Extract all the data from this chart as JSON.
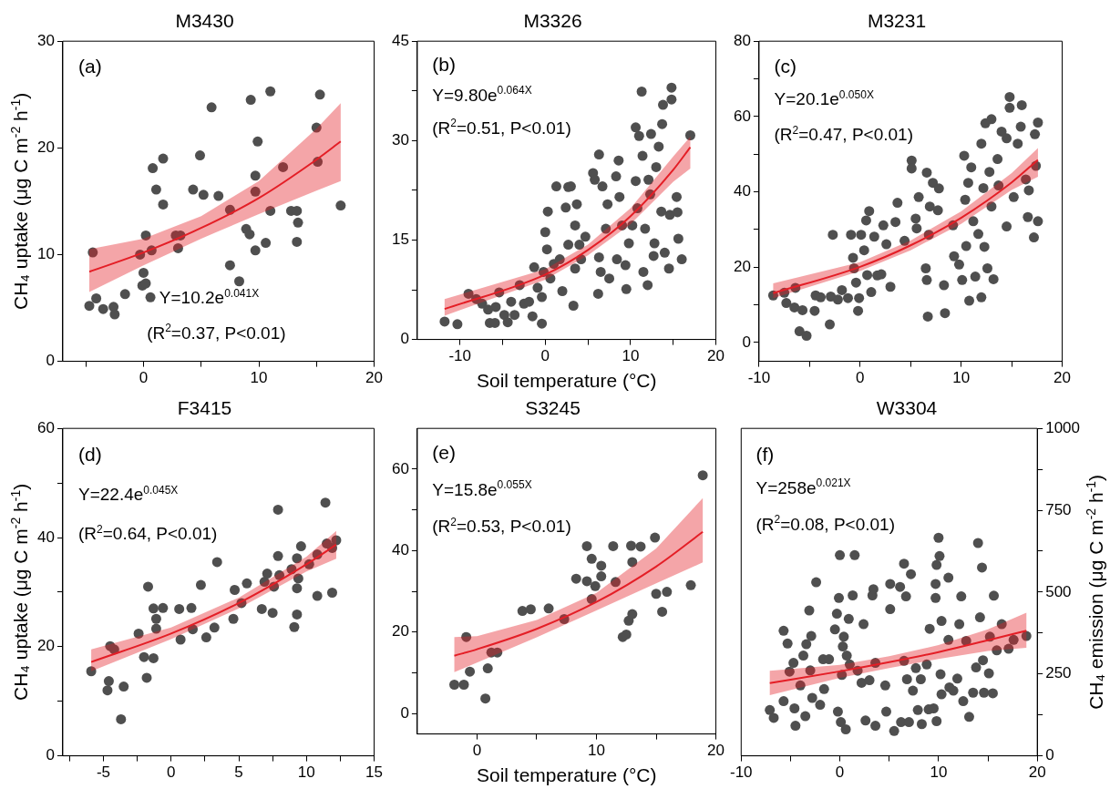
{
  "chart_data": [
    {
      "type": "scatter",
      "title": "M3430",
      "ylabel": "CH₄ uptake (μg C m$^{-2}$ h$^{-1}$)",
      "annotations": [
        "(a)",
        "Y=10.2e$^{0.041X}$",
        "(R$^{2}$=0.37, P<0.01)"
      ],
      "xlim": [
        -7,
        20
      ],
      "xticks": [
        {
          "value": -5,
          "label": null
        },
        0,
        {
          "value": 5,
          "label": null
        },
        10,
        {
          "value": 15,
          "label": null
        },
        20
      ],
      "ylim": [
        0,
        30
      ],
      "yticks": [
        0,
        10,
        20,
        30
      ],
      "series": [
        {
          "color": "#4f4f4f",
          "marker": "circle",
          "x": [
            -4.4,
            -4.7,
            -4.1,
            -3.5,
            -2.6,
            -2.5,
            -1.6,
            -0.3,
            0,
            -0.1,
            0.2,
            0.6,
            0.2,
            0.7,
            0.8,
            1.1,
            1.7,
            1.7,
            2.8,
            3.2,
            3.0,
            4.3,
            4.9,
            5.2,
            5.9,
            6.5,
            7.5,
            7.5,
            8.3,
            8.9,
            9.2,
            9.3,
            9.7,
            9.7,
            9.7,
            9.9,
            10.6,
            11.0,
            11.0,
            12.1,
            12.8,
            13.3,
            13.4,
            13.3,
            15.0,
            15.1,
            15.3,
            17.1
          ],
          "values": [
            10.2,
            5.2,
            5.9,
            4.9,
            5.1,
            4.4,
            6.3,
            10.0,
            8.3,
            7.1,
            7.3,
            6.0,
            11.8,
            10.4,
            18.1,
            16.1,
            19.0,
            14.7,
            11.8,
            11.8,
            10.6,
            16.1,
            19.3,
            15.6,
            23.8,
            15.5,
            14.2,
            9.0,
            7.5,
            12.4,
            11.9,
            24.5,
            17.4,
            15.9,
            10.4,
            20.6,
            11.1,
            25.3,
            14.1,
            18.2,
            14.1,
            14.1,
            13.0,
            11.2,
            21.9,
            18.7,
            25.0,
            14.6
          ]
        },
        {
          "type": "line",
          "color": "#e41e26",
          "marker": "none",
          "x": [
            -4.7,
            0,
            5,
            10,
            15,
            17.1
          ],
          "values": [
            8.4,
            10.2,
            12.5,
            15.3,
            18.9,
            20.6
          ],
          "lower": [
            6.5,
            9.0,
            11.5,
            13.8,
            16.0,
            16.9
          ],
          "upper": [
            10.5,
            11.5,
            13.6,
            16.9,
            21.8,
            24.2
          ]
        }
      ]
    },
    {
      "type": "scatter",
      "title": "M3326",
      "xlabel": "Soil temperature (°C)",
      "annotations": [
        "(b)",
        "Y=9.80e$^{0.064X}$",
        "(R$^{2}$=0.51, P<0.01)"
      ],
      "xlim": [
        -15,
        20
      ],
      "xticks": [
        -10,
        {
          "value": -5,
          "label": null
        },
        0,
        {
          "value": 5,
          "label": null
        },
        10,
        {
          "value": 15,
          "label": null
        },
        20
      ],
      "ylim": [
        0,
        45
      ],
      "yticks": [
        0,
        {
          "value": 7.5,
          "label": null
        },
        15,
        {
          "value": 22.5,
          "label": null
        },
        30,
        {
          "value": 37.5,
          "label": null
        },
        45
      ],
      "series": [
        {
          "color": "#4f4f4f",
          "marker": "circle",
          "x": [
            -11.8,
            -10.3,
            -9.0,
            -8.1,
            -7.4,
            -6.7,
            -6.5,
            -5.8,
            -5.9,
            -5.4,
            -4.8,
            -4.4,
            -4.0,
            -3.6,
            -3.0,
            -2.5,
            -1.9,
            -1.5,
            -1.3,
            -0.9,
            -0.4,
            -0.4,
            -0.2,
            0,
            0.2,
            0.3,
            0.6,
            1.0,
            1.3,
            1.7,
            2.0,
            2.4,
            2.7,
            3.0,
            2.7,
            3.5,
            3.3,
            3.5,
            3.7,
            4.0,
            4.7,
            4.2,
            5.6,
            5.8,
            6.2,
            6.3,
            6.3,
            6.5,
            6.7,
            7.1,
            7.3,
            7.5,
            8.3,
            8.4,
            8.6,
            8.7,
            9.0,
            9.4,
            9.5,
            9.8,
            10.2,
            10.6,
            10.6,
            10.8,
            11.0,
            11.3,
            11.4,
            11.5,
            11.7,
            12.0,
            12.1,
            12.3,
            12.4,
            12.7,
            12.8,
            13.0,
            13.3,
            13.6,
            13.7,
            13.8,
            14.0,
            14.5,
            14.6,
            14.8,
            14.8,
            15.4,
            15.5,
            15.6,
            16.0,
            17.0
          ],
          "values": [
            2.7,
            2.3,
            6.9,
            6.1,
            5.4,
            4.5,
            2.5,
            4.9,
            2.5,
            7.1,
            3.7,
            2.6,
            5.7,
            3.7,
            8.2,
            5.4,
            5.7,
            3.5,
            10.9,
            7.8,
            6.4,
            2.4,
            10.2,
            16.2,
            13.6,
            19.3,
            9.2,
            11.4,
            23.1,
            12.1,
            7.3,
            19.9,
            23.0,
            23.1,
            14.3,
            17.2,
            5.1,
            10.7,
            20.4,
            14.3,
            15.5,
            12.1,
            25.1,
            24.1,
            6.9,
            27.9,
            12.4,
            10.2,
            23.1,
            16.7,
            20.4,
            9.2,
            24.6,
            12.1,
            27.0,
            21.5,
            17.2,
            11.2,
            7.6,
            14.5,
            17.2,
            23.9,
            32.0,
            19.8,
            30.7,
            37.4,
            27.7,
            10.2,
            16.7,
            8.2,
            24.1,
            21.9,
            31.0,
            12.6,
            14.5,
            26.0,
            29.1,
            19.3,
            32.5,
            35.4,
            13.1,
            10.7,
            18.8,
            36.2,
            38.0,
            21.5,
            19.2,
            15.2,
            12.1,
            30.8
          ]
        },
        {
          "type": "line",
          "color": "#e41e26",
          "marker": "none",
          "x": [
            -11.8,
            0,
            5,
            10,
            15,
            17.0
          ],
          "values": [
            4.6,
            9.8,
            13.5,
            18.6,
            25.6,
            29.0
          ],
          "lower": [
            3.6,
            9.0,
            12.7,
            17.4,
            23.8,
            25.8
          ],
          "upper": [
            6.1,
            10.6,
            14.3,
            19.8,
            27.6,
            30.6
          ]
        }
      ]
    },
    {
      "type": "scatter",
      "title": "M3231",
      "annotations": [
        "(c)",
        "Y=20.1e$^{0.050X}$",
        "(R$^{2}$=0.47, P<0.01)"
      ],
      "xlim": [
        -10,
        20
      ],
      "xticks": [
        -10,
        {
          "value": -5,
          "label": null
        },
        0,
        {
          "value": 5,
          "label": null
        },
        10,
        {
          "value": 15,
          "label": null
        },
        20
      ],
      "ylim": [
        -5,
        80
      ],
      "yticks": [
        0,
        {
          "value": 10,
          "label": null
        },
        20,
        {
          "value": 30,
          "label": null
        },
        40,
        {
          "value": 50,
          "label": null
        },
        60,
        {
          "value": 70,
          "label": null
        },
        80
      ],
      "series": [
        {
          "color": "#4f4f4f",
          "marker": "circle",
          "x": [
            -8.6,
            -7.5,
            -7.3,
            -6.4,
            -6.5,
            -5.7,
            -6.0,
            -5.3,
            -4.5,
            -4.4,
            -3.9,
            -3.0,
            -2.9,
            -2.7,
            -2.2,
            -1.8,
            -1.2,
            -0.9,
            -0.7,
            -0.6,
            -0.4,
            -0.2,
            -0.1,
            0.1,
            0.4,
            0.6,
            0.7,
            0.9,
            1.1,
            1.4,
            1.7,
            2.1,
            2.3,
            2.6,
            3.0,
            3.5,
            3.7,
            4.4,
            5.1,
            5.1,
            5.5,
            5.6,
            5.8,
            6.5,
            6.6,
            6.6,
            6.8,
            6.7,
            6.9,
            7.2,
            7.7,
            7.8,
            8.3,
            8.4,
            9.2,
            9.3,
            9.8,
            10.1,
            10.3,
            10.4,
            10.5,
            10.7,
            10.8,
            11.0,
            11.2,
            11.4,
            11.7,
            12.0,
            12.0,
            12.2,
            12.3,
            12.4,
            12.6,
            12.8,
            13.0,
            13.0,
            13.2,
            13.6,
            13.7,
            14.0,
            14.5,
            14.5,
            14.8,
            14.8,
            15.2,
            15.6,
            16.0,
            15.9,
            16.4,
            16.6,
            16.7,
            17.2,
            17.3,
            17.4,
            17.6,
            17.6
          ],
          "values": [
            12.5,
            13.2,
            10.5,
            14.5,
            9.3,
            8.6,
            3.0,
            1.8,
            8.4,
            12.5,
            12.0,
            4.8,
            12.2,
            28.6,
            11.4,
            13.9,
            11.8,
            28.6,
            22.5,
            19.7,
            15.9,
            8.4,
            11.8,
            28.6,
            24.5,
            32.4,
            17.9,
            34.9,
            13.4,
            28.1,
            17.8,
            18.1,
            31.1,
            26.1,
            14.8,
            32.0,
            37.1,
            27.0,
            48.3,
            46.2,
            32.9,
            30.3,
            38.6,
            19.7,
            16.6,
            45.1,
            28.6,
            6.9,
            36.1,
            42.4,
            35.1,
            40.9,
            15.2,
            7.8,
            31.1,
            22.9,
            20.7,
            16.6,
            49.6,
            37.9,
            25.6,
            42.4,
            11.1,
            46.5,
            32.2,
            17.5,
            28.8,
            52.8,
            12.0,
            41.0,
            25.4,
            58.2,
            19.7,
            45.3,
            36.1,
            59.3,
            16.8,
            48.7,
            41.7,
            56.0,
            54.2,
            30.8,
            65.2,
            62.3,
            38.6,
            52.8,
            63.0,
            57.3,
            43.3,
            33.3,
            40.4,
            27.9,
            55.3,
            46.9,
            58.4,
            32.2
          ]
        },
        {
          "type": "line",
          "color": "#e41e26",
          "marker": "none",
          "x": [
            -8.6,
            0,
            5,
            10,
            15,
            17.6
          ],
          "values": [
            13.1,
            20.1,
            25.8,
            33.1,
            42.5,
            48.5
          ],
          "lower": [
            11.8,
            19.0,
            24.5,
            31.5,
            40.5,
            44.0
          ],
          "upper": [
            15.7,
            21.3,
            27.1,
            34.8,
            45.0,
            51.6
          ]
        }
      ]
    },
    {
      "type": "scatter",
      "title": "F3415",
      "ylabel": "CH₄ uptake (μg C m$^{-2}$ h$^{-1}$)",
      "annotations": [
        "(d)",
        "Y=22.4e$^{0.045X}$",
        "(R$^{2}$=0.64, P<0.01)"
      ],
      "xlim": [
        -8,
        15
      ],
      "xticks": [
        {
          "value": -7.5,
          "label": null
        },
        -5,
        {
          "value": -2.5,
          "label": null
        },
        0,
        {
          "value": 2.5,
          "label": null
        },
        5,
        {
          "value": 7.5,
          "label": null
        },
        10,
        {
          "value": 12.5,
          "label": null
        },
        15
      ],
      "ylim": [
        0,
        60
      ],
      "yticks": [
        0,
        {
          "value": 10,
          "label": null
        },
        20,
        {
          "value": 30,
          "label": null
        },
        40,
        {
          "value": 50,
          "label": null
        },
        60
      ],
      "series": [
        {
          "color": "#4f4f4f",
          "marker": "circle",
          "x": [
            -5.9,
            -4.7,
            -4.6,
            -4.5,
            -4.2,
            -3.7,
            -3.5,
            -2.4,
            -2.0,
            -1.8,
            -1.7,
            -1.3,
            -1.3,
            -1.1,
            -1.1,
            -0.6,
            0.6,
            0.7,
            1.5,
            1.6,
            2.2,
            2.6,
            3.2,
            3.4,
            4.6,
            4.7,
            5.2,
            5.6,
            6.7,
            6.9,
            7.1,
            7.5,
            7.6,
            7.9,
            7.9,
            8.0,
            8.9,
            9.1,
            9.3,
            9.3,
            9.4,
            9.3,
            9.6,
            10.2,
            10.8,
            10.8,
            11.4,
            11.5,
            11.9,
            11.9,
            12.2
          ],
          "values": [
            15.5,
            12.0,
            13.7,
            20.1,
            19.5,
            6.7,
            12.7,
            22.4,
            18.1,
            14.3,
            31.0,
            17.9,
            27.0,
            25.1,
            23.3,
            27.1,
            26.9,
            21.3,
            27.1,
            23.2,
            31.3,
            21.7,
            23.5,
            35.5,
            25.1,
            30.4,
            28.0,
            31.6,
            26.9,
            31.9,
            33.4,
            26.2,
            31.0,
            45.1,
            36.6,
            33.1,
            34.2,
            23.6,
            25.9,
            30.7,
            32.5,
            36.2,
            38.4,
            35.1,
            36.9,
            29.3,
            46.4,
            38.9,
            29.9,
            38.1,
            39.5
          ]
        },
        {
          "type": "line",
          "color": "#e41e26",
          "marker": "none",
          "x": [
            -5.9,
            0,
            5,
            10,
            12.2
          ],
          "values": [
            17.2,
            22.4,
            28.0,
            35.1,
            38.7
          ],
          "lower": [
            15.5,
            21.4,
            27.0,
            33.8,
            36.1
          ],
          "upper": [
            19.5,
            23.5,
            29.0,
            36.5,
            41.2
          ]
        }
      ]
    },
    {
      "type": "scatter",
      "title": "S3245",
      "xlabel": "Soil temperature (°C)",
      "annotations": [
        "(e)",
        "Y=15.8e$^{0.055X}$",
        "(R$^{2}$=0.53, P<0.01)"
      ],
      "xlim": [
        -5,
        20
      ],
      "xticks": [
        0,
        {
          "value": 5,
          "label": null
        },
        10,
        {
          "value": 15,
          "label": null
        },
        20
      ],
      "ylim": [
        -5,
        70
      ],
      "yticks": [
        0,
        {
          "value": 10,
          "label": null
        },
        20,
        {
          "value": 30,
          "label": null
        },
        40,
        {
          "value": 50,
          "label": null
        },
        60
      ],
      "series": [
        {
          "color": "#4f4f4f",
          "marker": "circle",
          "x": [
            -1.9,
            -1.1,
            -0.9,
            -0.6,
            0.7,
            0.9,
            1.2,
            1.7,
            3.8,
            4.5,
            6.0,
            7.3,
            8.3,
            9.2,
            9.2,
            9.6,
            9.6,
            9.9,
            10.4,
            10.4,
            11.4,
            11.6,
            12.2,
            12.5,
            12.7,
            13.0,
            12.9,
            13.0,
            13.7,
            14.9,
            15.0,
            15.5,
            15.9,
            17.9,
            18.9
          ],
          "values": [
            7.1,
            7.1,
            18.8,
            10.3,
            3.7,
            11.1,
            15.0,
            15.0,
            25.2,
            25.6,
            25.8,
            23.2,
            33.1,
            32.5,
            41.1,
            38.0,
            28.1,
            31.3,
            36.3,
            33.7,
            41.1,
            32.3,
            18.8,
            19.4,
            22.8,
            24.4,
            41.2,
            37.2,
            41.0,
            43.2,
            29.4,
            25.0,
            29.9,
            31.5,
            58.5
          ]
        },
        {
          "type": "line",
          "color": "#e41e26",
          "marker": "none",
          "x": [
            -1.9,
            0,
            5,
            10,
            15,
            18.9
          ],
          "values": [
            14.2,
            15.8,
            20.8,
            27.4,
            36.1,
            44.6
          ],
          "lower": [
            10.2,
            12.5,
            18.7,
            25.3,
            32.0,
            37.1
          ],
          "upper": [
            18.8,
            19.0,
            23.0,
            29.6,
            40.5,
            52.9
          ]
        }
      ]
    },
    {
      "type": "scatter",
      "title": "W3304",
      "y2label": "CH₄ emission (μg C m$^{-2}$ h$^{-1}$)",
      "annotations": [
        "(f)",
        "Y=258e$^{0.021X}$",
        "(R$^{2}$=0.08, P<0.01)"
      ],
      "xlim": [
        -10,
        20
      ],
      "xticks": [
        -10,
        {
          "value": -5,
          "label": null
        },
        0,
        {
          "value": 5,
          "label": null
        },
        10,
        {
          "value": 15,
          "label": null
        },
        20
      ],
      "y2lim": [
        0,
        1000
      ],
      "y2ticks": [
        0,
        {
          "value": 125,
          "label": null
        },
        250,
        {
          "value": 375,
          "label": null
        },
        500,
        {
          "value": 625,
          "label": null
        },
        750,
        {
          "value": 875,
          "label": null
        },
        1000
      ],
      "series": [
        {
          "axis": "y2",
          "color": "#4f4f4f",
          "marker": "circle",
          "x": [
            -7.1,
            -6.7,
            -5.7,
            -5.7,
            -5.3,
            -5.1,
            -4.7,
            -4.6,
            -4.5,
            -4.0,
            -3.7,
            -3.5,
            -3.4,
            -3.1,
            -3.0,
            -2.9,
            -2.8,
            -2.4,
            -2.0,
            -1.7,
            -1.6,
            -1.1,
            -0.5,
            -0.3,
            -0.2,
            -0.1,
            0,
            0.1,
            0.2,
            0.3,
            0.4,
            0.6,
            0.7,
            0.9,
            1.0,
            1.3,
            1.5,
            1.8,
            2.2,
            2.4,
            2.6,
            3.0,
            3.3,
            3.4,
            3.6,
            3.6,
            4.6,
            4.7,
            5.1,
            5.1,
            5.5,
            6.1,
            6.2,
            6.5,
            6.5,
            6.7,
            6.8,
            7.0,
            7.2,
            7.4,
            7.7,
            7.9,
            8.2,
            8.3,
            8.8,
            9.0,
            9.1,
            9.5,
            9.7,
            9.7,
            9.8,
            9.8,
            10.0,
            10.1,
            10.2,
            10.3,
            10.3,
            11.0,
            11.0,
            11.1,
            11.5,
            11.9,
            12.1,
            12.3,
            12.5,
            12.8,
            13.1,
            13.5,
            13.8,
            14.0,
            14.2,
            14.4,
            14.5,
            14.6,
            15.1,
            15.2,
            15.6,
            15.5,
            15.9,
            16.4,
            17.1,
            17.6,
            18.9
          ],
          "values": [
            140,
            116,
            167,
            382,
            343,
            257,
            284,
            145,
            92,
            215,
            306,
            121,
            341,
            444,
            261,
            366,
            177,
            530,
            156,
            295,
            204,
            295,
            386,
            434,
            135,
            482,
            613,
            103,
            247,
            334,
            364,
            81,
            306,
            418,
            279,
            490,
            613,
            260,
            223,
            402,
            108,
            231,
            490,
            509,
            92,
            284,
            215,
            135,
            525,
            448,
            76,
            516,
            103,
            290,
            587,
            487,
            234,
            103,
            555,
            199,
            268,
            140,
            234,
            97,
            279,
            142,
            388,
            145,
            482,
            525,
            583,
            106,
            666,
            610,
            249,
            412,
            188,
            544,
            354,
            209,
            199,
            236,
            402,
            487,
            167,
            351,
            119,
            193,
            270,
            650,
            423,
            575,
            292,
            193,
            252,
            364,
            489,
            191,
            322,
            402,
            327,
            354,
            366
          ]
        },
        {
          "type": "line",
          "axis": "y2",
          "color": "#e41e26",
          "marker": "none",
          "x": [
            -7.1,
            0,
            5,
            10,
            15,
            18.9
          ],
          "values": [
            222,
            258,
            286,
            317,
            353,
            382
          ],
          "lower": [
            185,
            238,
            268,
            296,
            320,
            330
          ],
          "upper": [
            260,
            278,
            304,
            338,
            386,
            437
          ]
        }
      ]
    }
  ]
}
